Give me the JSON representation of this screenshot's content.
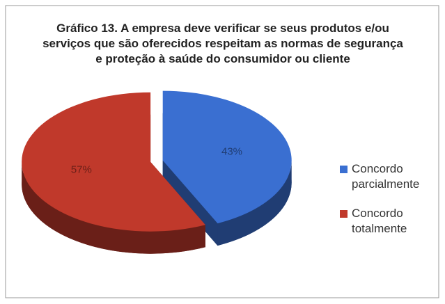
{
  "chart_data": {
    "type": "pie",
    "title": "Gráfico 13. A empresa deve verificar se seus produtos e/ou serviços que são oferecidos respeitam as normas de segurança e proteção à saúde do consumidor ou cliente",
    "categories": [
      "Concordo parcialmente",
      "Concordo totalmente"
    ],
    "values": [
      43,
      57
    ],
    "value_labels": [
      "43%",
      "57%"
    ],
    "colors": [
      "#3a6fd1",
      "#c0392b"
    ],
    "legend": "right"
  }
}
